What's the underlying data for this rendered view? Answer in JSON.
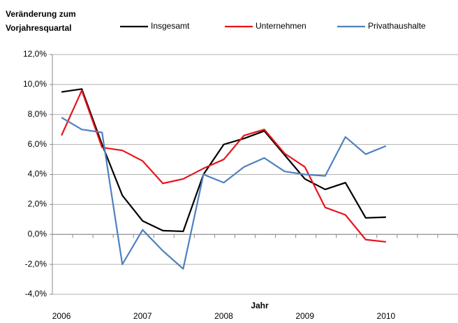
{
  "chart_data": {
    "type": "line",
    "ylabel": [
      "Veränderung zum",
      "Vorjahresquartal"
    ],
    "xlabel": "Jahr",
    "categories": [
      "2006",
      null,
      null,
      null,
      "2007",
      null,
      null,
      null,
      "2008",
      null,
      null,
      null,
      "2009",
      null,
      null,
      null,
      "2010",
      null,
      null,
      null
    ],
    "series": [
      {
        "name": "Insgesamt",
        "color": "#000000",
        "values": [
          9.5,
          9.7,
          6.0,
          2.6,
          0.9,
          0.25,
          0.2,
          4.0,
          6.0,
          6.4,
          6.9,
          5.3,
          3.7,
          3.0,
          3.45,
          1.1,
          1.15,
          null,
          null,
          null
        ]
      },
      {
        "name": "Unternehmen",
        "color": "#e8141c",
        "values": [
          6.6,
          9.6,
          5.8,
          5.6,
          4.9,
          3.4,
          3.7,
          4.4,
          5.0,
          6.6,
          7.0,
          5.4,
          4.5,
          1.8,
          1.3,
          -0.35,
          -0.5,
          null,
          null,
          null
        ]
      },
      {
        "name": "Privathaushalte",
        "color": "#4f81bd",
        "values": [
          7.8,
          7.0,
          6.8,
          -2.0,
          0.3,
          -1.1,
          -2.3,
          4.0,
          3.45,
          4.5,
          5.1,
          4.2,
          4.0,
          3.9,
          6.5,
          5.35,
          5.9,
          null,
          null,
          null
        ]
      }
    ],
    "ylim": [
      -4,
      12
    ],
    "yticks": [
      {
        "value": -4,
        "label": "-4,0%"
      },
      {
        "value": -2,
        "label": "-2,0%"
      },
      {
        "value": 0,
        "label": "0,0%"
      },
      {
        "value": 2,
        "label": "2,0%"
      },
      {
        "value": 4,
        "label": "4,0%"
      },
      {
        "value": 6,
        "label": "6,0%"
      },
      {
        "value": 8,
        "label": "8,0%"
      },
      {
        "value": 10,
        "label": "10,0%"
      },
      {
        "value": 12,
        "label": "12,0%"
      }
    ],
    "grid": true
  }
}
